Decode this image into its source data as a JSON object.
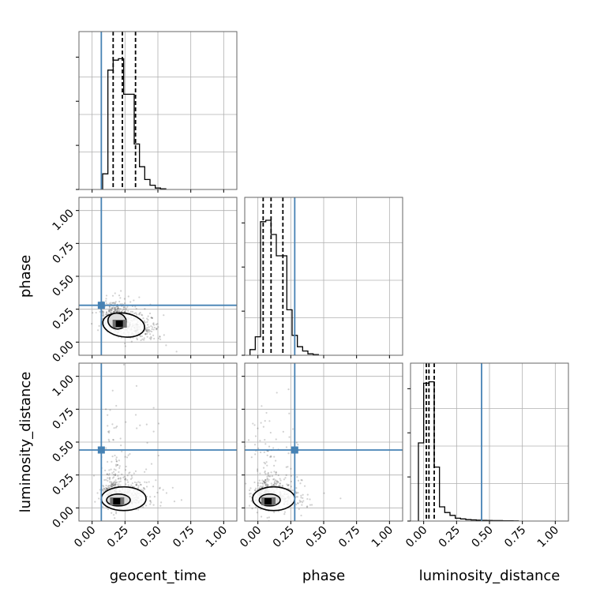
{
  "chart_data": {
    "type": "corner",
    "parameters": [
      "geocent_time",
      "phase",
      "luminosity_distance"
    ],
    "axis_labels": {
      "geocent_time": "geocent_time",
      "phase": "phase",
      "luminosity_distance": "luminosity_distance"
    },
    "range": [
      -0.1,
      1.1
    ],
    "tick_values": [
      0.0,
      0.25,
      0.5,
      0.75,
      1.0
    ],
    "tick_labels": [
      "0.00",
      "0.25",
      "0.50",
      "0.75",
      "1.00"
    ],
    "grid": true,
    "truths": {
      "geocent_time": 0.07,
      "phase": 0.28,
      "luminosity_distance": 0.44
    },
    "truth_color": "#4682b4",
    "quantiles": {
      "geocent_time": [
        0.16,
        0.23,
        0.33
      ],
      "phase": [
        0.04,
        0.1,
        0.19
      ],
      "luminosity_distance": [
        0.02,
        0.04,
        0.08
      ]
    },
    "histograms": {
      "geocent_time": {
        "bin_edges": [
          0.08,
          0.12,
          0.16,
          0.2,
          0.24,
          0.28,
          0.32,
          0.36,
          0.4,
          0.44,
          0.48,
          0.52,
          0.56
        ],
        "counts": [
          0.11,
          0.84,
          0.91,
          0.92,
          0.67,
          0.67,
          0.32,
          0.16,
          0.07,
          0.03,
          0.01,
          0.005
        ]
      },
      "phase": {
        "bin_edges": [
          -0.06,
          -0.02,
          0.02,
          0.06,
          0.1,
          0.14,
          0.18,
          0.22,
          0.26,
          0.3,
          0.34,
          0.38,
          0.42,
          0.46
        ],
        "counts": [
          0.04,
          0.13,
          0.94,
          0.95,
          0.85,
          0.7,
          0.7,
          0.32,
          0.14,
          0.06,
          0.03,
          0.01,
          0.005
        ]
      },
      "luminosity_distance": {
        "bin_edges": [
          -0.04,
          0.0,
          0.04,
          0.08,
          0.12,
          0.16,
          0.2,
          0.24,
          0.28,
          0.32,
          0.36,
          0.4,
          0.44,
          0.48,
          0.52,
          0.56,
          0.6,
          0.64,
          0.68,
          0.72
        ],
        "counts": [
          0.55,
          0.97,
          0.98,
          0.38,
          0.1,
          0.06,
          0.04,
          0.02,
          0.015,
          0.01,
          0.008,
          0.006,
          0.005,
          0.004,
          0.003,
          0.003,
          0.002,
          0.002,
          0.001
        ]
      }
    },
    "scatter_2d": {
      "phase_vs_geocent_time": {
        "x_param": "geocent_time",
        "y_param": "phase",
        "density_peak": [
          0.21,
          0.14
        ],
        "contours": [
          {
            "center": [
              0.19,
              0.16
            ],
            "rx": 0.07,
            "ry": 0.06,
            "tilt": -0.35
          },
          {
            "center": [
              0.24,
              0.13
            ],
            "rx": 0.16,
            "ry": 0.09,
            "tilt": -0.25
          }
        ]
      },
      "luminosity_distance_vs_geocent_time": {
        "x_param": "geocent_time",
        "y_param": "luminosity_distance",
        "density_peak": [
          0.19,
          0.05
        ],
        "contours": [
          {
            "center": [
              0.2,
              0.06
            ],
            "rx": 0.09,
            "ry": 0.045,
            "tilt": 0
          },
          {
            "center": [
              0.24,
              0.07
            ],
            "rx": 0.17,
            "ry": 0.09,
            "tilt": 0
          }
        ]
      },
      "luminosity_distance_vs_phase": {
        "x_param": "phase",
        "y_param": "luminosity_distance",
        "density_peak": [
          0.08,
          0.05
        ],
        "contours": [
          {
            "center": [
              0.09,
              0.06
            ],
            "rx": 0.08,
            "ry": 0.045,
            "tilt": 0
          },
          {
            "center": [
              0.12,
              0.07
            ],
            "rx": 0.16,
            "ry": 0.09,
            "tilt": 0
          }
        ]
      }
    }
  }
}
